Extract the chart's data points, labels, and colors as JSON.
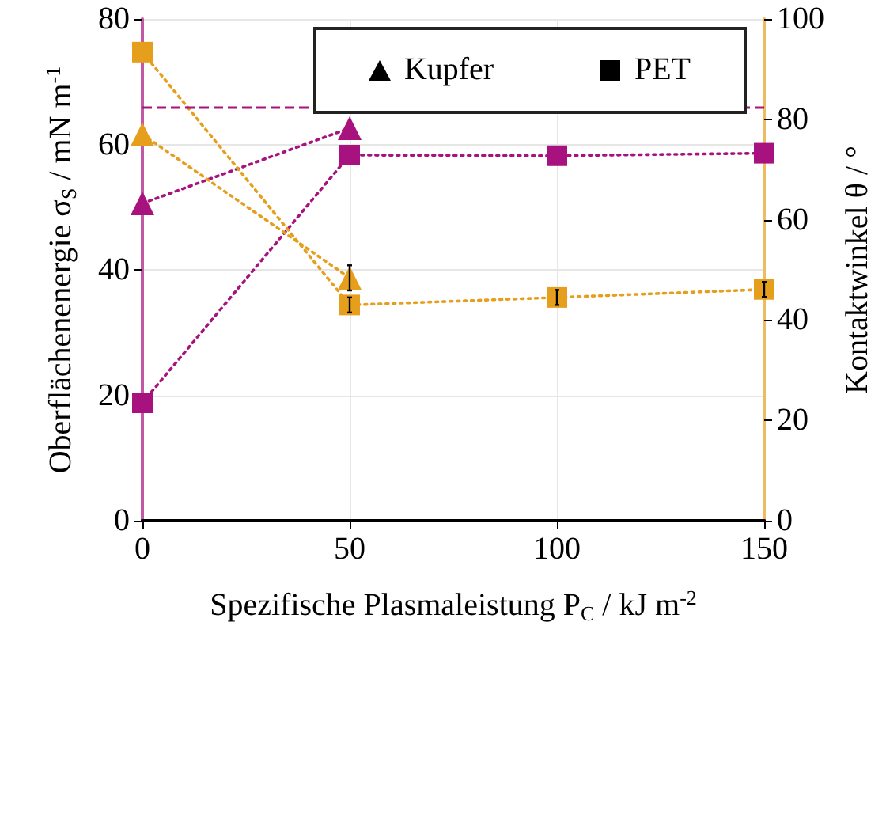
{
  "chart_data": {
    "type": "line",
    "xlabel": "Spezifische Plasmaleistung P$_{C}$ / kJ m$^{-2}$",
    "ylabel": "Oberflächenenergie σ$_{S}$ / mN m$^{-1}$",
    "y2label": "Kontaktwinkel θ / °",
    "annotations": [
      "Kupfer",
      "PET"
    ],
    "xlim": [
      0,
      150
    ],
    "xticks": [
      0,
      50,
      100,
      150
    ],
    "ylim": [
      0,
      80
    ],
    "yticks": [
      0,
      20,
      40,
      60,
      80
    ],
    "y2lim": [
      0,
      100
    ],
    "y2ticks": [
      0,
      20,
      40,
      60,
      80,
      100
    ],
    "grid": true,
    "line_style": "dotted",
    "series": [
      {
        "color": "#a8127e",
        "marker": "triangle",
        "x": [
          0,
          50
        ],
        "values": [
          50.6,
          62.6
        ]
      },
      {
        "color": "#a8127e",
        "marker": "square",
        "x": [
          0,
          50,
          100,
          150
        ],
        "values": [
          18.8,
          58.3,
          58.2,
          58.6
        ]
      },
      {
        "color": "#e69f1c",
        "marker": "triangle",
        "axis": "y2",
        "x": [
          0,
          50
        ],
        "values": [
          77,
          48.4
        ],
        "errors": [
          null,
          2.5
        ]
      },
      {
        "color": "#e69f1c",
        "marker": "square",
        "axis": "y2",
        "x": [
          0,
          50,
          100,
          150
        ],
        "values": [
          93.4,
          43,
          44.5,
          46.1
        ],
        "errors": [
          null,
          1.5,
          1.5,
          1.5
        ]
      }
    ],
    "ref_lines": [
      {
        "axis": "y",
        "value": 66,
        "color": "#a8127e",
        "line_style": "dashed"
      }
    ]
  }
}
